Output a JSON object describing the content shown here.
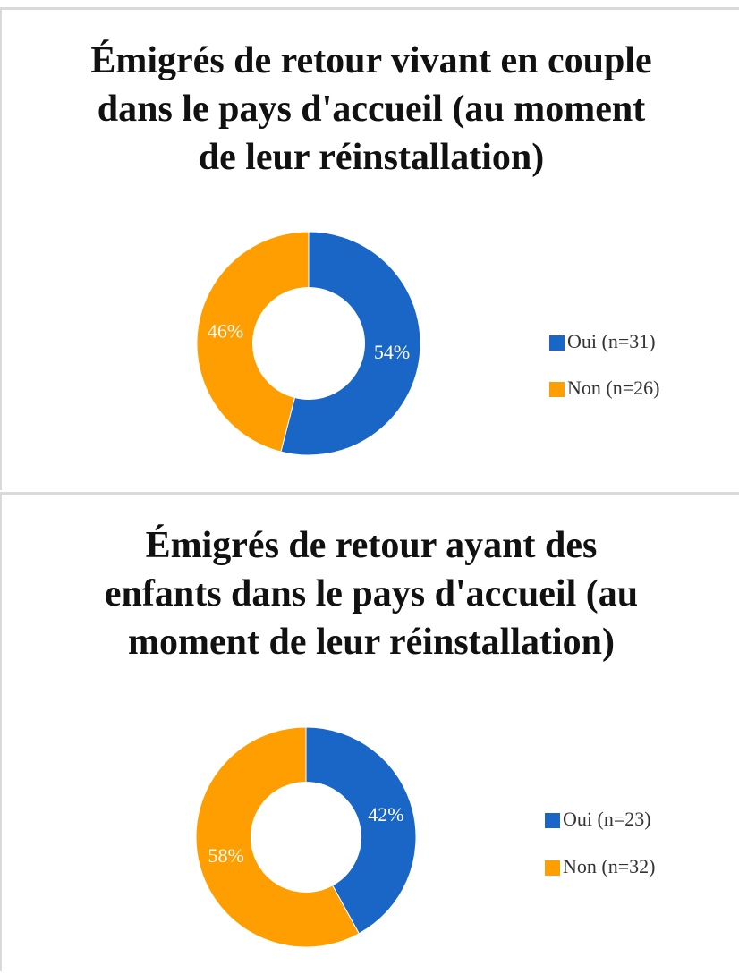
{
  "chart_data": [
    {
      "type": "pie",
      "donut": true,
      "title": "Émigrés de retour vivant en couple dans le pays d'accueil (au moment de leur réinstallation)",
      "categories": [
        "Oui (n=31)",
        "Non (n=26)"
      ],
      "values": [
        54,
        46
      ],
      "value_labels": [
        "54%",
        "46%"
      ],
      "colors": [
        "#1a66c6",
        "#ff9e00"
      ]
    },
    {
      "type": "pie",
      "donut": true,
      "title": "Émigrés de retour ayant des enfants dans le pays d'accueil (au moment de leur réinstallation)",
      "categories": [
        "Oui (n=23)",
        "Non (n=32)"
      ],
      "values": [
        42,
        58
      ],
      "value_labels": [
        "42%",
        "58%"
      ],
      "colors": [
        "#1a66c6",
        "#ff9e00"
      ]
    }
  ]
}
